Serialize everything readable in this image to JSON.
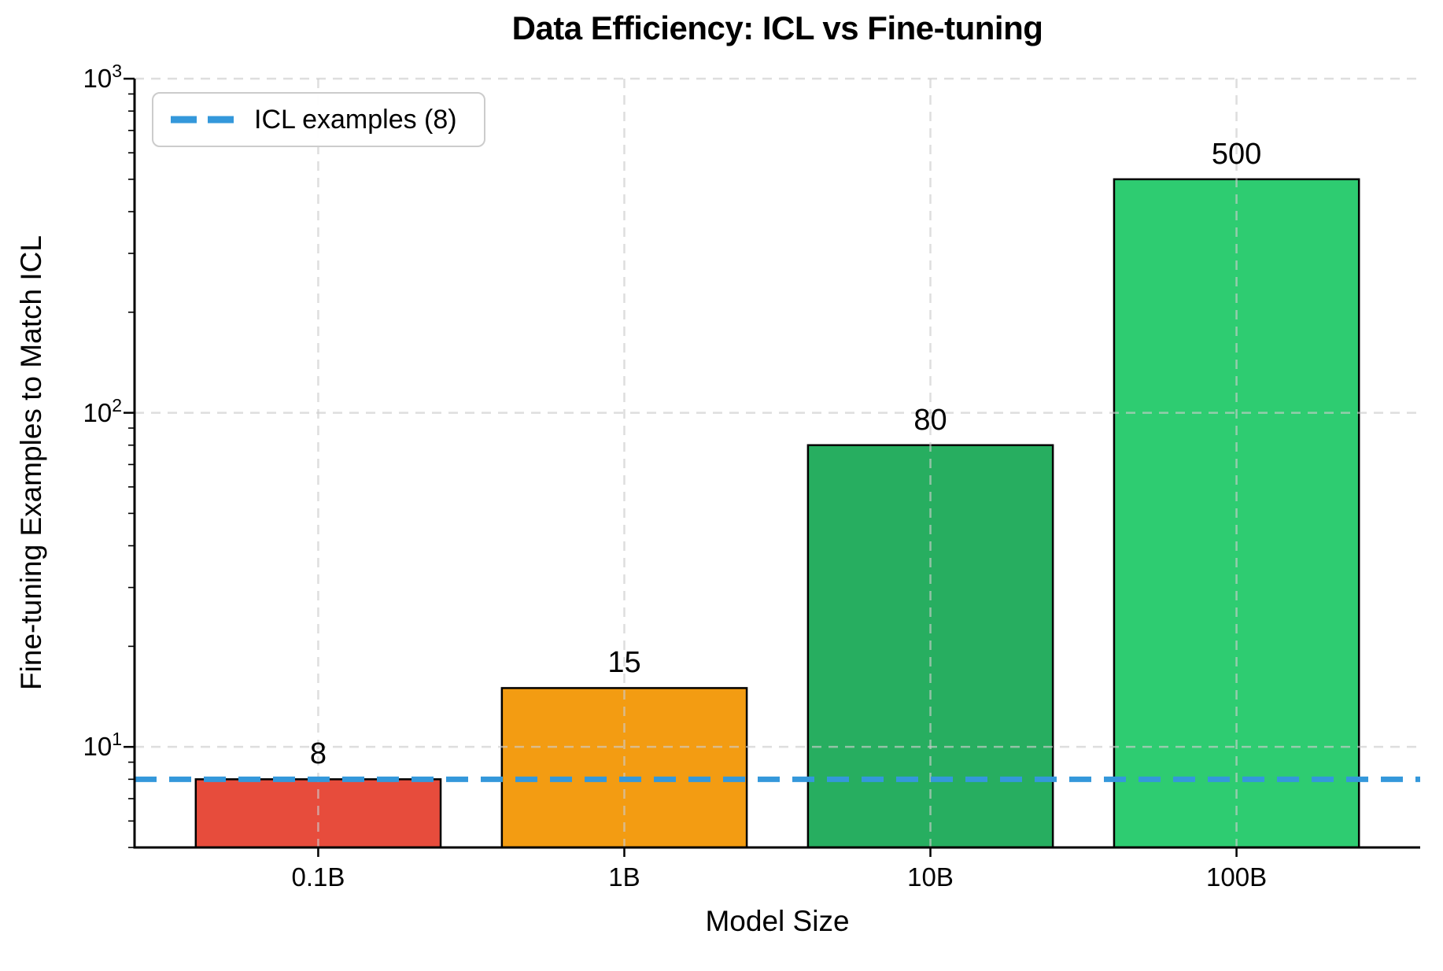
{
  "chart_data": {
    "type": "bar",
    "title": "Data Efficiency: ICL vs Fine-tuning",
    "xlabel": "Model Size",
    "ylabel": "Fine-tuning Examples to Match ICL",
    "categories": [
      "0.1B",
      "1B",
      "10B",
      "100B"
    ],
    "values": [
      8,
      15,
      80,
      500
    ],
    "bar_labels": [
      "8",
      "15",
      "80",
      "500"
    ],
    "bar_colors": [
      "#e74c3c",
      "#f39c12",
      "#27ae60",
      "#2ecc71"
    ],
    "bar_edge_color": "#000000",
    "yscale": "log",
    "ylim": [
      5,
      1000
    ],
    "yticks": [
      {
        "value": 10,
        "base": "10",
        "exp": "1"
      },
      {
        "value": 100,
        "base": "10",
        "exp": "2"
      },
      {
        "value": 1000,
        "base": "10",
        "exp": "3"
      }
    ],
    "grid": true,
    "grid_style": "dashed",
    "reference_line": {
      "value": 8,
      "color": "#3498db",
      "style": "dashed"
    },
    "legend": {
      "position": "upper-left",
      "entries": [
        {
          "label": "ICL examples (8)",
          "color": "#3498db",
          "style": "dashed"
        }
      ]
    }
  }
}
